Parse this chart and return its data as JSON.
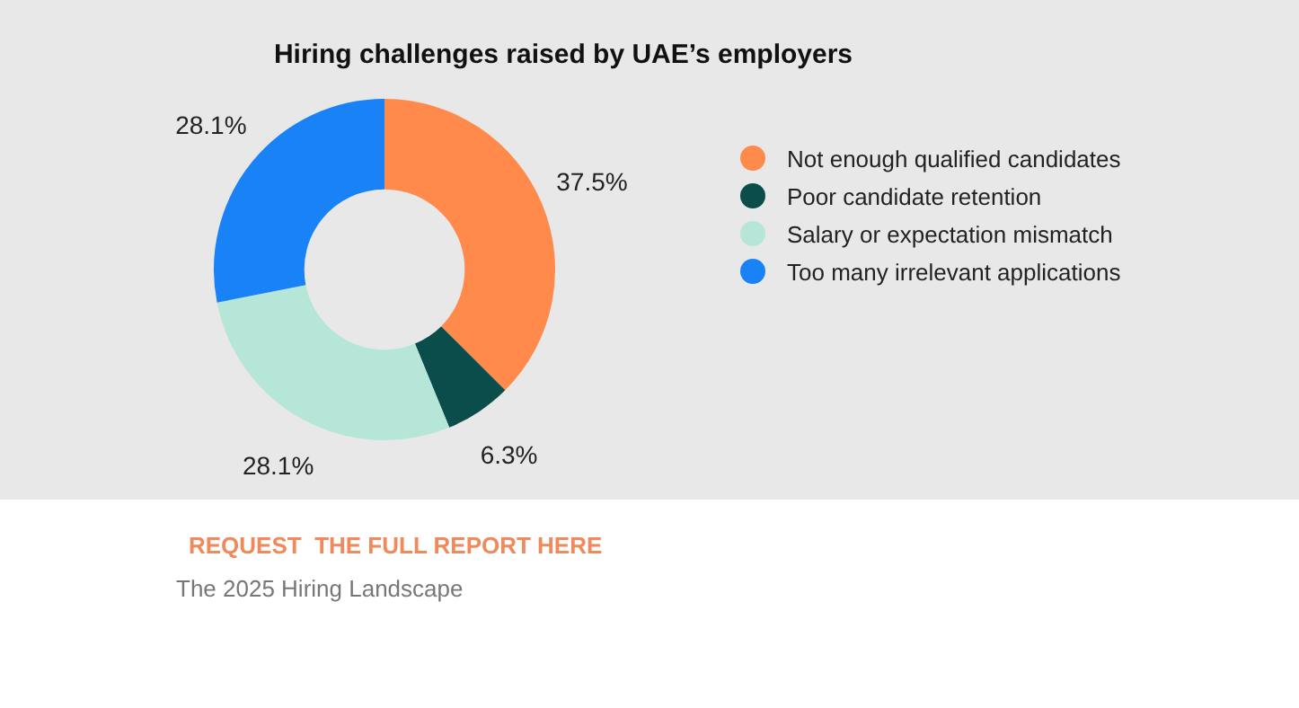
{
  "chart_data": {
    "type": "donut",
    "title": "Hiring challenges raised by UAE’s employers",
    "categories": [
      "Not enough qualified candidates",
      "Poor candidate retention",
      "Salary or expectation mismatch",
      "Too many irrelevant applications"
    ],
    "values": [
      37.5,
      6.3,
      28.1,
      28.1
    ],
    "colors": [
      "#ff8a4c",
      "#0b4d4a",
      "#b5e6d8",
      "#1a82f7"
    ],
    "value_labels": [
      "37.5%",
      "6.3%",
      "28.1%",
      "28.1%"
    ],
    "legend": "right",
    "annotations": [
      "REQUEST  THE FULL REPORT HERE",
      "The 2025 Hiring Landscape"
    ]
  }
}
